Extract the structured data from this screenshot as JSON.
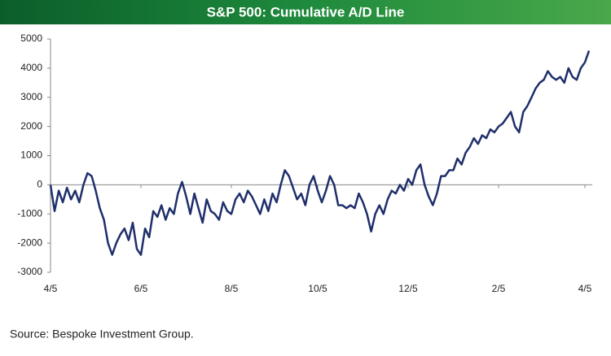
{
  "chart_data": {
    "type": "line",
    "title": "S&P 500: Cumulative A/D Line",
    "source": "Source:  Bespoke Investment Group.",
    "categories": [
      "4/5",
      null,
      null,
      null,
      null,
      null,
      null,
      null,
      null,
      null,
      null,
      null,
      null,
      null,
      null,
      null,
      null,
      null,
      null,
      null,
      null,
      null,
      "6/5",
      null,
      null,
      null,
      null,
      null,
      null,
      null,
      null,
      null,
      null,
      null,
      null,
      null,
      null,
      null,
      null,
      null,
      null,
      null,
      null,
      null,
      "8/5",
      null,
      null,
      null,
      null,
      null,
      null,
      null,
      null,
      null,
      null,
      null,
      null,
      null,
      null,
      null,
      null,
      null,
      null,
      null,
      null,
      "10/5",
      null,
      null,
      null,
      null,
      null,
      null,
      null,
      null,
      null,
      null,
      null,
      null,
      null,
      null,
      null,
      null,
      null,
      null,
      null,
      null,
      null,
      "12/5",
      null,
      null,
      null,
      null,
      null,
      null,
      null,
      null,
      null,
      null,
      null,
      null,
      null,
      null,
      null,
      null,
      null,
      null,
      null,
      null,
      null,
      "2/5",
      null,
      null,
      null,
      null,
      null,
      null,
      null,
      null,
      null,
      null,
      null,
      null,
      null,
      null,
      null,
      null,
      null,
      null,
      null,
      null,
      "4/5",
      null
    ],
    "values": [
      0,
      -900,
      -200,
      -600,
      -100,
      -500,
      -200,
      -600,
      0,
      400,
      300,
      -200,
      -800,
      -1200,
      -2000,
      -2400,
      -2000,
      -1700,
      -1500,
      -1900,
      -1300,
      -2200,
      -2400,
      -1500,
      -1800,
      -900,
      -1100,
      -700,
      -1200,
      -800,
      -1000,
      -300,
      100,
      -400,
      -1000,
      -300,
      -800,
      -1300,
      -500,
      -900,
      -1000,
      -1200,
      -600,
      -900,
      -1000,
      -500,
      -300,
      -600,
      -200,
      -400,
      -700,
      -1000,
      -500,
      -900,
      -300,
      -600,
      0,
      500,
      300,
      -100,
      -500,
      -300,
      -700,
      0,
      300,
      -200,
      -600,
      -200,
      300,
      0,
      -700,
      -700,
      -800,
      -700,
      -800,
      -300,
      -600,
      -1000,
      -1600,
      -1000,
      -700,
      -1000,
      -500,
      -200,
      -300,
      0,
      -200,
      200,
      0,
      500,
      700,
      0,
      -400,
      -700,
      -300,
      300,
      300,
      500,
      500,
      900,
      700,
      1100,
      1300,
      1600,
      1400,
      1700,
      1600,
      1900,
      1800,
      2000,
      2100,
      2300,
      2500,
      2000,
      1800,
      2500,
      2700,
      3000,
      3300,
      3500,
      3600,
      3900,
      3700,
      3600,
      3700,
      3500,
      4000,
      3700,
      3600,
      4000,
      4200,
      4600
    ],
    "color": "#1f2f6b",
    "ylim": [
      -3000,
      5000
    ],
    "yticks": [
      -3000,
      -2000,
      -1000,
      0,
      1000,
      2000,
      3000,
      4000,
      5000
    ]
  }
}
